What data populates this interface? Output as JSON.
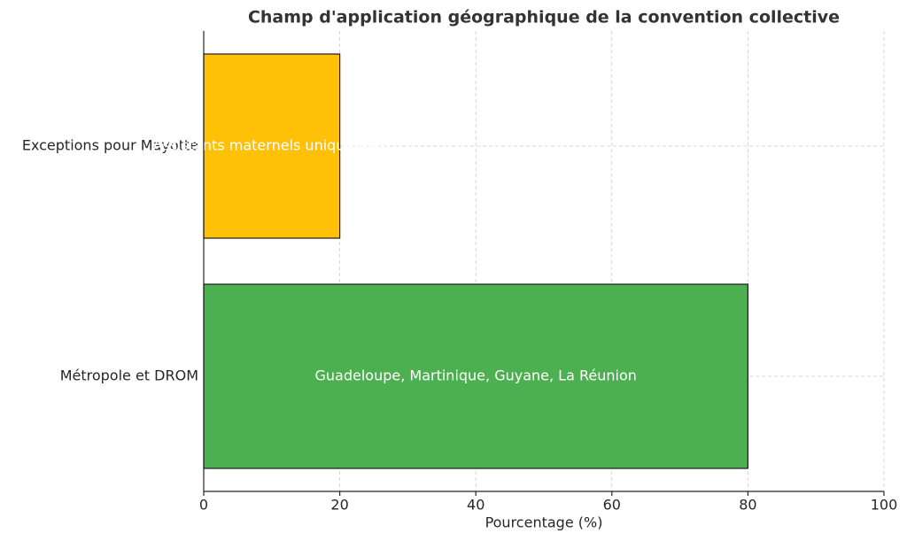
{
  "chart_data": {
    "type": "barh",
    "title": "Champ d'application géographique de la convention collective",
    "xlabel": "Pourcentage (%)",
    "categories": [
      "Métropole et DROM",
      "Exceptions pour Mayotte"
    ],
    "values": [
      80,
      20
    ],
    "colors": [
      "#4caf50",
      "#ffc107"
    ],
    "annotations": [
      "Guadeloupe, Martinique, Guyane, La Réunion",
      "Assistants maternels uniquement"
    ],
    "xlim": [
      0,
      100
    ],
    "xticks": [
      0,
      20,
      40,
      60,
      80,
      100
    ],
    "grid": true
  }
}
